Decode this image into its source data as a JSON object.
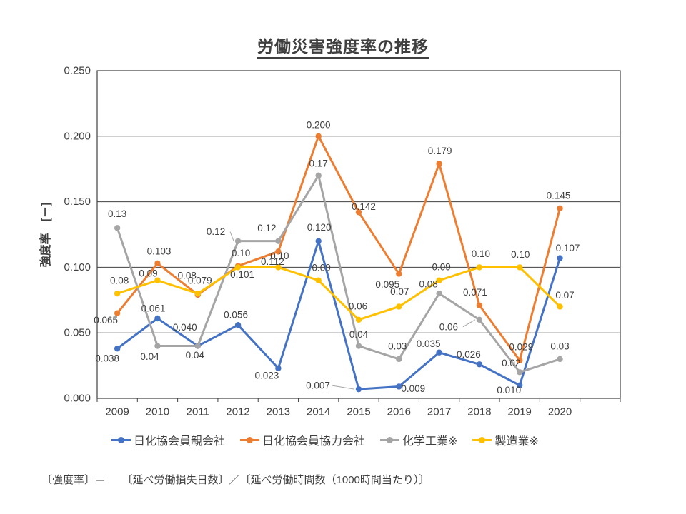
{
  "slide": {
    "title": "労働災害強度率の推移",
    "footnote": "〔強度率〕＝　　〔延べ労働損失日数〕／〔延べ労働時間数（1000時間当たり）〕"
  },
  "chart_data": {
    "type": "line",
    "title": "労働災害強度率の推移",
    "ylabel": "強度率　[－]",
    "xlabel": "",
    "ylim": [
      0,
      0.25
    ],
    "y_tick_labels": [
      "0.000",
      "0.050",
      "0.100",
      "0.150",
      "0.200",
      "0.250"
    ],
    "grid": true,
    "legend_position": "bottom",
    "axis_color": "#404040",
    "text_color": "#3f3f3f",
    "categories": [
      "2009",
      "2010",
      "2011",
      "2012",
      "2013",
      "2014",
      "2015",
      "2016",
      "2017",
      "2018",
      "2019",
      "2020"
    ],
    "series": [
      {
        "name": "日化協会員親会社",
        "color": "#4472C4",
        "values": [
          0.038,
          0.061,
          0.04,
          0.056,
          0.023,
          0.12,
          0.007,
          0.009,
          0.035,
          0.026,
          0.01,
          0.107
        ],
        "point_labels": [
          "0.038",
          "0.061",
          "0.040",
          "0.056",
          "0.023",
          "0.120",
          "0.007",
          "0.009",
          "0.035",
          "0.026",
          "0.010",
          "0.107"
        ]
      },
      {
        "name": "日化協会員協力会社",
        "color": "#ED7D31",
        "values": [
          0.065,
          0.103,
          0.079,
          0.101,
          0.112,
          0.2,
          0.142,
          0.095,
          0.179,
          0.071,
          0.029,
          0.145
        ],
        "point_labels": [
          "0.065",
          "0.103",
          "0.079",
          "0.101",
          "0.112",
          "0.200",
          "0.142",
          "0.095",
          "0.179",
          "0.071",
          "0.029",
          "0.145"
        ]
      },
      {
        "name": "化学工業※",
        "color": "#A5A5A5",
        "values": [
          0.13,
          0.04,
          0.04,
          0.12,
          0.12,
          0.17,
          0.04,
          0.03,
          0.08,
          0.06,
          0.02,
          0.03
        ],
        "point_labels": [
          "0.13",
          "0.04",
          "0.04",
          "0.12",
          "0.12",
          "0.17",
          "0.04",
          "0.03",
          "0.08",
          "0.06",
          "0.02",
          "0.03"
        ]
      },
      {
        "name": "製造業※",
        "color": "#FFC000",
        "values": [
          0.08,
          0.09,
          0.08,
          0.1,
          0.1,
          0.09,
          0.06,
          0.07,
          0.09,
          0.1,
          0.1,
          0.07
        ],
        "point_labels": [
          "0.08",
          "0.09",
          "0.08",
          "0.10",
          "0.10",
          "0.09",
          "0.06",
          "0.07",
          "0.09",
          "0.10",
          "0.10",
          "0.07"
        ]
      }
    ],
    "label_offsets": [
      [
        [
          -14,
          14
        ],
        [
          -6,
          -14
        ],
        [
          -18,
          -26
        ],
        [
          -3,
          -14
        ],
        [
          -16,
          10
        ],
        [
          1,
          -19
        ],
        [
          -57,
          -5
        ],
        [
          20,
          3
        ],
        [
          -15,
          -12
        ],
        [
          -15,
          -14
        ],
        [
          -15,
          7
        ],
        [
          11,
          -14
        ]
      ],
      [
        [
          -16,
          10
        ],
        [
          2,
          -17
        ],
        [
          3,
          -20
        ],
        [
          6,
          12
        ],
        [
          -8,
          14
        ],
        [
          0,
          -16
        ],
        [
          7,
          -8
        ],
        [
          -16,
          15
        ],
        [
          1,
          -18
        ],
        [
          -6,
          -18
        ],
        [
          2,
          -19
        ],
        [
          -2,
          -18
        ]
      ],
      [
        [
          0,
          -20
        ],
        [
          -11,
          15
        ],
        [
          -4,
          13
        ],
        [
          -31,
          -13
        ],
        [
          -16,
          -18
        ],
        [
          0,
          -17
        ],
        [
          0,
          -16
        ],
        [
          -2,
          -18
        ],
        [
          -15,
          -13
        ],
        [
          -43,
          10
        ],
        [
          -12,
          -13
        ],
        [
          0,
          -18
        ]
      ],
      [
        [
          3,
          -18
        ],
        [
          -13,
          -10
        ],
        [
          -15,
          -25
        ],
        [
          4,
          -20
        ],
        [
          2,
          -16
        ],
        [
          4,
          -18
        ],
        [
          -1,
          -19
        ],
        [
          1,
          -21
        ],
        [
          3,
          -19
        ],
        [
          2,
          -19
        ],
        [
          1,
          -18
        ],
        [
          7,
          -16
        ]
      ]
    ],
    "leader_lines": [
      {
        "series": 2,
        "point": 3
      },
      {
        "series": 0,
        "point": 6
      },
      {
        "series": 2,
        "point": 9
      }
    ]
  }
}
